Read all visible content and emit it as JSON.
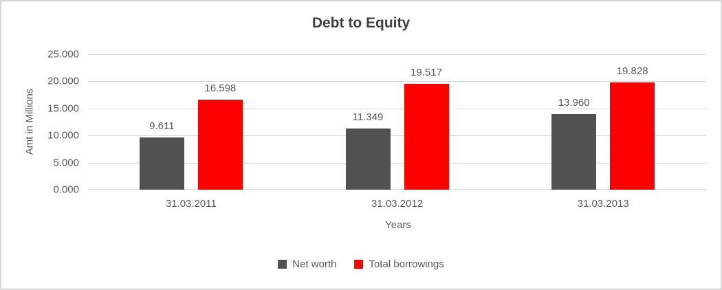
{
  "chart_data": {
    "type": "bar",
    "title": "Debt to Equity",
    "xlabel": "Years",
    "ylabel": "Amt in Millions",
    "categories": [
      "31.03.2011",
      "31.03.2012",
      "31.03.2013"
    ],
    "series": [
      {
        "name": "Net worth",
        "color": "#515151",
        "values": [
          9.611,
          11.349,
          13.96
        ],
        "labels": [
          "9.611",
          "11.349",
          "13.960"
        ]
      },
      {
        "name": "Total borrowings",
        "color": "#ff0000",
        "values": [
          16.598,
          19.517,
          19.828
        ],
        "labels": [
          "16.598",
          "19.517",
          "19.828"
        ]
      }
    ],
    "ylim": [
      0,
      25
    ],
    "yticks": [
      {
        "value": 0,
        "label": "0.000"
      },
      {
        "value": 5,
        "label": "5.000"
      },
      {
        "value": 10,
        "label": "10.000"
      },
      {
        "value": 15,
        "label": "15.000"
      },
      {
        "value": 20,
        "label": "20.000"
      },
      {
        "value": 25,
        "label": "25.000"
      }
    ],
    "grid": true,
    "legend_position": "bottom"
  },
  "colors": {
    "grid": "#d6d6d6",
    "frame_border": "#d6d6d6",
    "title_text": "#3f3f3f",
    "axis_text": "#595959"
  }
}
